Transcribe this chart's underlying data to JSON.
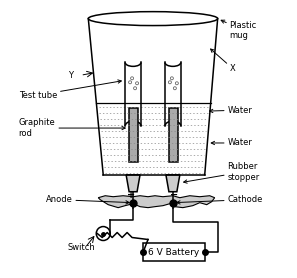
{
  "bg_color": "#ffffff",
  "line_color": "#000000",
  "fill_graphite": "#aaaaaa",
  "labels": {
    "plastic_mug": "Plastic\nmug",
    "X": "X",
    "Y": "Y",
    "test_tube": "Test tube",
    "graphite_rod": "Graphite\nrod",
    "water1": "Water",
    "water2": "Water",
    "rubber_stopper": "Rubber\nstopper",
    "anode": "Anode",
    "cathode": "Cathode",
    "switch": "Switch",
    "battery": "6 V Battery"
  },
  "figsize": [
    2.97,
    2.78
  ],
  "dpi": 100
}
